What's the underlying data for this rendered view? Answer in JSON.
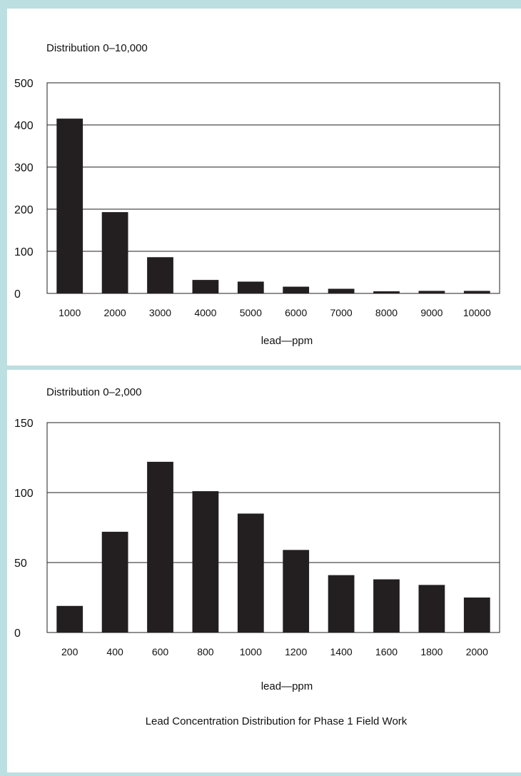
{
  "chart_data": [
    {
      "type": "bar",
      "title": "Distribution 0–10,000",
      "xlabel": "lead—ppm",
      "ylabel": "",
      "categories": [
        "1000",
        "2000",
        "3000",
        "4000",
        "5000",
        "6000",
        "7000",
        "8000",
        "9000",
        "10000"
      ],
      "values": [
        415,
        193,
        86,
        32,
        28,
        16,
        11,
        5,
        6,
        6
      ],
      "ylim": [
        0,
        500
      ],
      "yticks": [
        0,
        100,
        200,
        300,
        400,
        500
      ],
      "grid": true,
      "bar_color": "#231f20"
    },
    {
      "type": "bar",
      "title": "Distribution 0–2,000",
      "xlabel": "lead—ppm",
      "ylabel": "",
      "categories": [
        "200",
        "400",
        "600",
        "800",
        "1000",
        "1200",
        "1400",
        "1600",
        "1800",
        "2000"
      ],
      "values": [
        19,
        72,
        122,
        101,
        85,
        59,
        41,
        38,
        34,
        25
      ],
      "ylim": [
        0,
        150
      ],
      "yticks": [
        0,
        50,
        100,
        150
      ],
      "grid": true,
      "bar_color": "#231f20"
    }
  ],
  "caption": "Lead Concentration Distribution for Phase 1 Field  Work"
}
